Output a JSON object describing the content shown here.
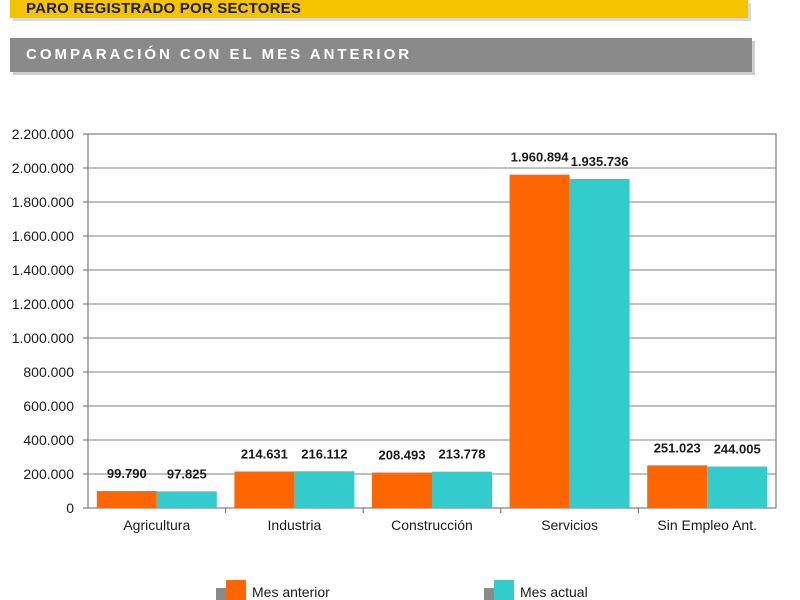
{
  "header": {
    "title": "PARO REGISTRADO POR SECTORES",
    "subtitle": "COMPARACIÓN CON EL MES ANTERIOR"
  },
  "colors": {
    "banner": "#f5c400",
    "subbanner": "#8a8a8a",
    "mes_anterior": "#ff6600",
    "mes_actual": "#33cccc"
  },
  "chart_data": {
    "type": "bar",
    "categories": [
      "Agricultura",
      "Industria",
      "Construcción",
      "Servicios",
      "Sin Empleo Ant."
    ],
    "series": [
      {
        "name": "Mes anterior",
        "values": [
          99790,
          214631,
          208493,
          1960894,
          251023
        ],
        "labels": [
          "99.790",
          "214.631",
          "208.493",
          "1.960.894",
          "251.023"
        ]
      },
      {
        "name": "Mes actual",
        "values": [
          97825,
          216112,
          213778,
          1935736,
          244005
        ],
        "labels": [
          "97.825",
          "216.112",
          "213.778",
          "1.935.736",
          "244.005"
        ]
      }
    ],
    "ylim": [
      0,
      2200000
    ],
    "yticks": [
      0,
      200000,
      400000,
      600000,
      800000,
      1000000,
      1200000,
      1400000,
      1600000,
      1800000,
      2000000,
      2200000
    ],
    "ytick_labels": [
      "0",
      "200.000",
      "400.000",
      "600.000",
      "800.000",
      "1.000.000",
      "1.200.000",
      "1.400.000",
      "1.600.000",
      "1.800.000",
      "2.000.000",
      "2.200.000"
    ],
    "grid": true,
    "legend": "bottom"
  }
}
